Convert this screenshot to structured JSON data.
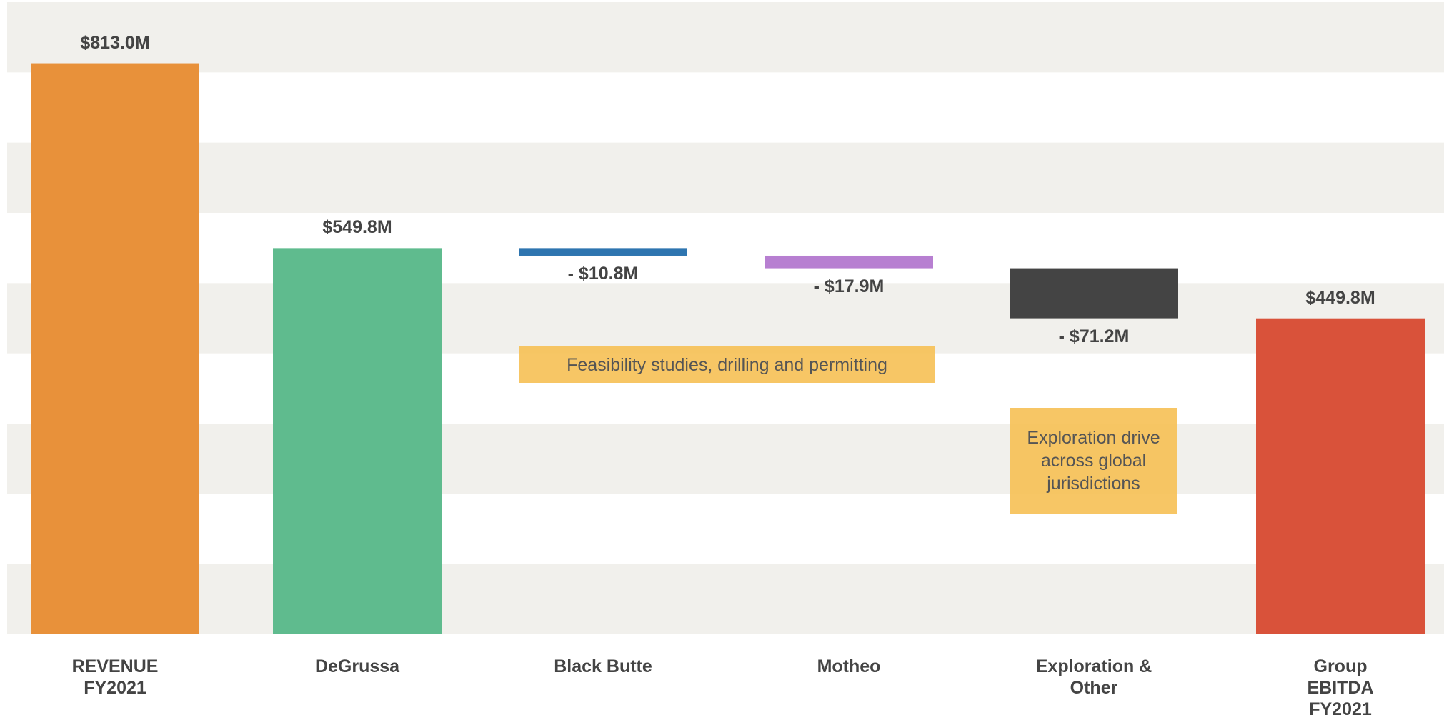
{
  "chart_data": {
    "type": "waterfall",
    "categories": [
      "REVENUE\nFY2021",
      "DeGrussa",
      "Black Butte",
      "Motheo",
      "Exploration &\nOther",
      "Group EBITDA\nFY2021"
    ],
    "values": [
      813.0,
      549.8,
      -10.8,
      -17.9,
      -71.2,
      449.8
    ],
    "value_labels": [
      "$813.0M",
      "$549.8M",
      "- $10.8M",
      "- $17.9M",
      "- $71.2M",
      "$449.8M"
    ],
    "measure": [
      "total",
      "total",
      "relative",
      "relative",
      "relative",
      "total"
    ],
    "colors": [
      "#e8913a",
      "#5fbb8e",
      "#2e75b0",
      "#b77fd1",
      "#444444",
      "#d9523a"
    ],
    "ylim": [
      0,
      900
    ],
    "yticks": [
      0,
      100,
      200,
      300,
      400,
      500,
      600,
      700,
      800,
      900
    ],
    "grid": "bands",
    "annotations": [
      "Feasibility studies, drilling and permitting",
      "Exploration drive across global jurisdictions"
    ]
  }
}
